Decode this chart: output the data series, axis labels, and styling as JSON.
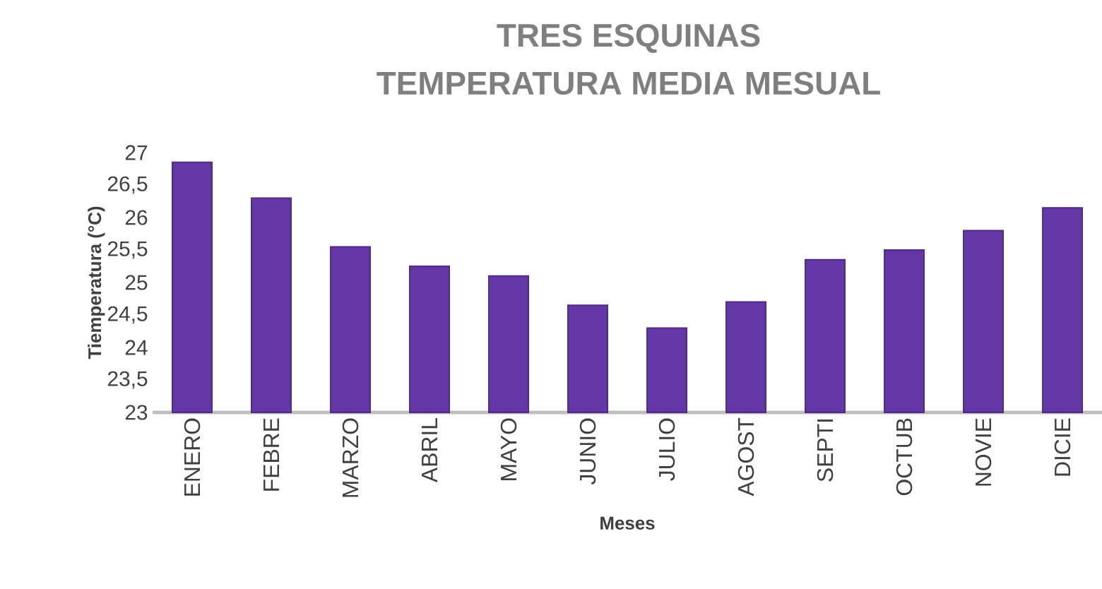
{
  "chart_data": {
    "type": "bar",
    "title": "TRES ESQUINAS",
    "subtitle": "TEMPERATURA MEDIA MESUAL",
    "xlabel": "Meses",
    "ylabel": "Tiemperatura (°C)",
    "categories": [
      "ENERO",
      "FEBRE",
      "MARZO",
      "ABRIL",
      "MAYO",
      "JUNIO",
      "JULIO",
      "AGOST",
      "SEPTI",
      "OCTUB",
      "NOVIE",
      "DICIE"
    ],
    "values": [
      26.85,
      26.3,
      25.55,
      25.25,
      25.1,
      24.65,
      24.3,
      24.7,
      25.35,
      25.5,
      25.8,
      26.15
    ],
    "color": "#6436a6",
    "ylim": [
      23,
      27
    ],
    "yticks": [
      23,
      {
        "value": 23.5,
        "label": "23,5"
      },
      24,
      {
        "value": 24.5,
        "label": "24,5"
      },
      25,
      {
        "value": 25.5,
        "label": "25,5"
      },
      26,
      {
        "value": 26.5,
        "label": "26,5"
      },
      27
    ],
    "grid": false
  }
}
